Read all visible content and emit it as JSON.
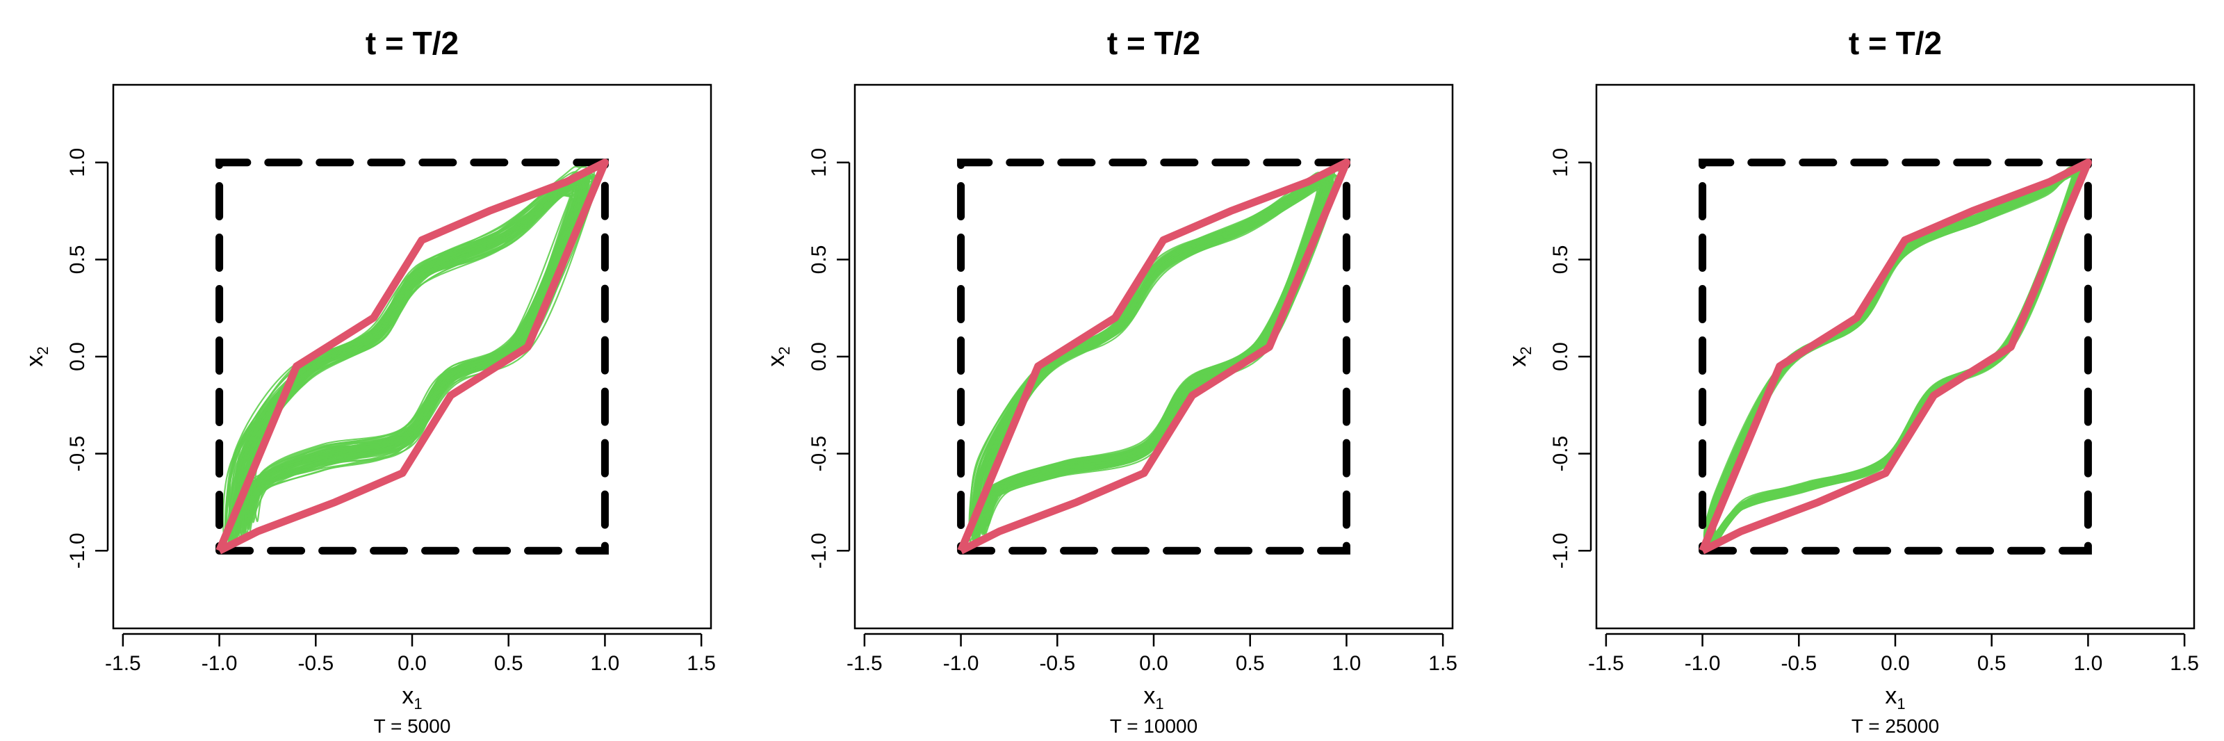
{
  "chart_data": [
    {
      "type": "line",
      "title": "t = T/2",
      "xlabel": "x",
      "xlabel_sub": "1",
      "ylabel": "x",
      "ylabel_sub": "2",
      "caption": "T = 5000",
      "xlim": [
        -1.55,
        1.55
      ],
      "ylim": [
        -1.4,
        1.4
      ],
      "xticks": [
        -1.5,
        -1.0,
        -0.5,
        0.0,
        0.5,
        1.0,
        1.5
      ],
      "xtick_labels": [
        "-1.5",
        "-1.0",
        "-0.5",
        "0.0",
        "0.5",
        "1.0",
        "1.5"
      ],
      "yticks": [
        -1.0,
        -0.5,
        0.0,
        0.5,
        1.0
      ],
      "ytick_labels": [
        "-1.0",
        "-0.5",
        "0.0",
        "0.5",
        "1.0"
      ],
      "band_spread": 0.09,
      "series": [
        {
          "kind": "square",
          "color": "#000000",
          "x": [
            -1,
            1,
            1,
            -1,
            -1
          ],
          "y": [
            -1,
            -1,
            1,
            1,
            -1
          ]
        },
        {
          "kind": "hull",
          "color": "#DF536B",
          "x": [
            -1,
            -0.8,
            -0.4,
            -0.05,
            0.2,
            0.6,
            1,
            0.8,
            0.4,
            0.05,
            -0.2,
            -0.6,
            -1
          ],
          "y": [
            -1,
            -0.9,
            -0.75,
            -0.6,
            -0.2,
            0.05,
            1,
            0.9,
            0.75,
            0.6,
            0.2,
            -0.05,
            -1
          ]
        },
        {
          "kind": "band",
          "color": "#61D04F",
          "x": [
            -0.95,
            -0.85,
            -0.5,
            -0.05,
            0.2,
            0.6,
            0.92,
            0.9,
            0.8,
            0.5,
            0.05,
            -0.2,
            -0.6,
            -0.9
          ],
          "y": [
            -0.95,
            -0.7,
            -0.55,
            -0.45,
            -0.12,
            0.1,
            0.85,
            0.95,
            0.9,
            0.65,
            0.45,
            0.12,
            -0.1,
            -0.5
          ]
        }
      ]
    },
    {
      "type": "line",
      "title": "t = T/2",
      "xlabel": "x",
      "xlabel_sub": "1",
      "ylabel": "x",
      "ylabel_sub": "2",
      "caption": "T = 10000",
      "xlim": [
        -1.55,
        1.55
      ],
      "ylim": [
        -1.4,
        1.4
      ],
      "xticks": [
        -1.5,
        -1.0,
        -0.5,
        0.0,
        0.5,
        1.0,
        1.5
      ],
      "xtick_labels": [
        "-1.5",
        "-1.0",
        "-0.5",
        "0.0",
        "0.5",
        "1.0",
        "1.5"
      ],
      "yticks": [
        -1.0,
        -0.5,
        0.0,
        0.5,
        1.0
      ],
      "ytick_labels": [
        "-1.0",
        "-0.5",
        "0.0",
        "0.5",
        "1.0"
      ],
      "band_spread": 0.06,
      "series": [
        {
          "kind": "square",
          "color": "#000000",
          "x": [
            -1,
            1,
            1,
            -1,
            -1
          ],
          "y": [
            -1,
            -1,
            1,
            1,
            -1
          ]
        },
        {
          "kind": "hull",
          "color": "#DF536B",
          "x": [
            -1,
            -0.8,
            -0.4,
            -0.05,
            0.2,
            0.6,
            1,
            0.8,
            0.4,
            0.05,
            -0.2,
            -0.6,
            -1
          ],
          "y": [
            -1,
            -0.9,
            -0.75,
            -0.6,
            -0.2,
            0.05,
            1,
            0.9,
            0.75,
            0.6,
            0.2,
            -0.05,
            -1
          ]
        },
        {
          "kind": "band",
          "color": "#61D04F",
          "x": [
            -0.95,
            -0.85,
            -0.5,
            -0.05,
            0.2,
            0.6,
            0.92,
            0.9,
            0.8,
            0.5,
            0.05,
            -0.2,
            -0.6,
            -0.9
          ],
          "y": [
            -0.95,
            -0.72,
            -0.6,
            -0.5,
            -0.15,
            0.08,
            0.85,
            0.95,
            0.88,
            0.7,
            0.5,
            0.15,
            -0.08,
            -0.55
          ]
        }
      ]
    },
    {
      "type": "line",
      "title": "t = T/2",
      "xlabel": "x",
      "xlabel_sub": "1",
      "ylabel": "x",
      "ylabel_sub": "2",
      "caption": "T = 25000",
      "xlim": [
        -1.55,
        1.55
      ],
      "ylim": [
        -1.4,
        1.4
      ],
      "xticks": [
        -1.5,
        -1.0,
        -0.5,
        0.0,
        0.5,
        1.0,
        1.5
      ],
      "xtick_labels": [
        "-1.5",
        "-1.0",
        "-0.5",
        "0.0",
        "0.5",
        "1.0",
        "1.5"
      ],
      "yticks": [
        -1.0,
        -0.5,
        0.0,
        0.5,
        1.0
      ],
      "ytick_labels": [
        "-1.0",
        "-0.5",
        "0.0",
        "0.5",
        "1.0"
      ],
      "band_spread": 0.035,
      "series": [
        {
          "kind": "square",
          "color": "#000000",
          "x": [
            -1,
            1,
            1,
            -1,
            -1
          ],
          "y": [
            -1,
            -1,
            1,
            1,
            -1
          ]
        },
        {
          "kind": "hull",
          "color": "#DF536B",
          "x": [
            -1,
            -0.8,
            -0.4,
            -0.05,
            0.2,
            0.6,
            1,
            0.8,
            0.4,
            0.05,
            -0.2,
            -0.6,
            -1
          ],
          "y": [
            -1,
            -0.9,
            -0.75,
            -0.6,
            -0.2,
            0.05,
            1,
            0.9,
            0.75,
            0.6,
            0.2,
            -0.05,
            -1
          ]
        },
        {
          "kind": "band",
          "color": "#61D04F",
          "x": [
            -0.97,
            -0.8,
            -0.45,
            -0.05,
            0.2,
            0.6,
            0.95,
            0.92,
            0.8,
            0.45,
            0.05,
            -0.2,
            -0.6,
            -0.92
          ],
          "y": [
            -0.97,
            -0.78,
            -0.68,
            -0.55,
            -0.18,
            0.06,
            0.9,
            0.97,
            0.88,
            0.73,
            0.56,
            0.18,
            -0.06,
            -0.7
          ]
        }
      ]
    }
  ]
}
